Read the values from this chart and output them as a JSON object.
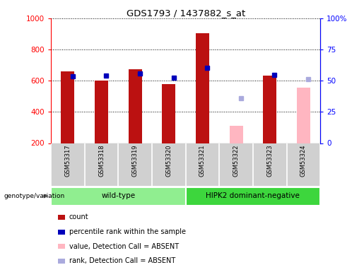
{
  "title": "GDS1793 / 1437882_s_at",
  "samples": [
    "GSM53317",
    "GSM53318",
    "GSM53319",
    "GSM53320",
    "GSM53321",
    "GSM53322",
    "GSM53323",
    "GSM53324"
  ],
  "count_values": [
    660,
    600,
    675,
    578,
    905,
    null,
    635,
    null
  ],
  "count_absent_values": [
    null,
    null,
    null,
    null,
    null,
    310,
    null,
    555
  ],
  "rank_values": [
    630,
    635,
    648,
    622,
    685,
    null,
    638,
    null
  ],
  "rank_absent_values": [
    null,
    null,
    null,
    null,
    null,
    490,
    null,
    612
  ],
  "ylim": [
    200,
    1000
  ],
  "yticks": [
    200,
    400,
    600,
    800,
    1000
  ],
  "y2lim": [
    0,
    100
  ],
  "y2ticks": [
    0,
    25,
    50,
    75,
    100
  ],
  "y2labels": [
    "0",
    "25",
    "50",
    "75",
    "100%"
  ],
  "groups": [
    {
      "label": "wild-type",
      "start": 0,
      "end": 4,
      "color": "#90EE90"
    },
    {
      "label": "HIPK2 dominant-negative",
      "start": 4,
      "end": 8,
      "color": "#3DD63D"
    }
  ],
  "bar_color_present": "#BB1111",
  "bar_color_absent": "#FFB6C1",
  "rank_color_present": "#0000BB",
  "rank_color_absent": "#AAAADD",
  "bar_width": 0.4,
  "background_color": "#ffffff",
  "genotype_label": "genotype/variation",
  "legend_items": [
    {
      "label": "count",
      "color": "#BB1111"
    },
    {
      "label": "percentile rank within the sample",
      "color": "#0000BB"
    },
    {
      "label": "value, Detection Call = ABSENT",
      "color": "#FFB6C1"
    },
    {
      "label": "rank, Detection Call = ABSENT",
      "color": "#AAAADD"
    }
  ]
}
